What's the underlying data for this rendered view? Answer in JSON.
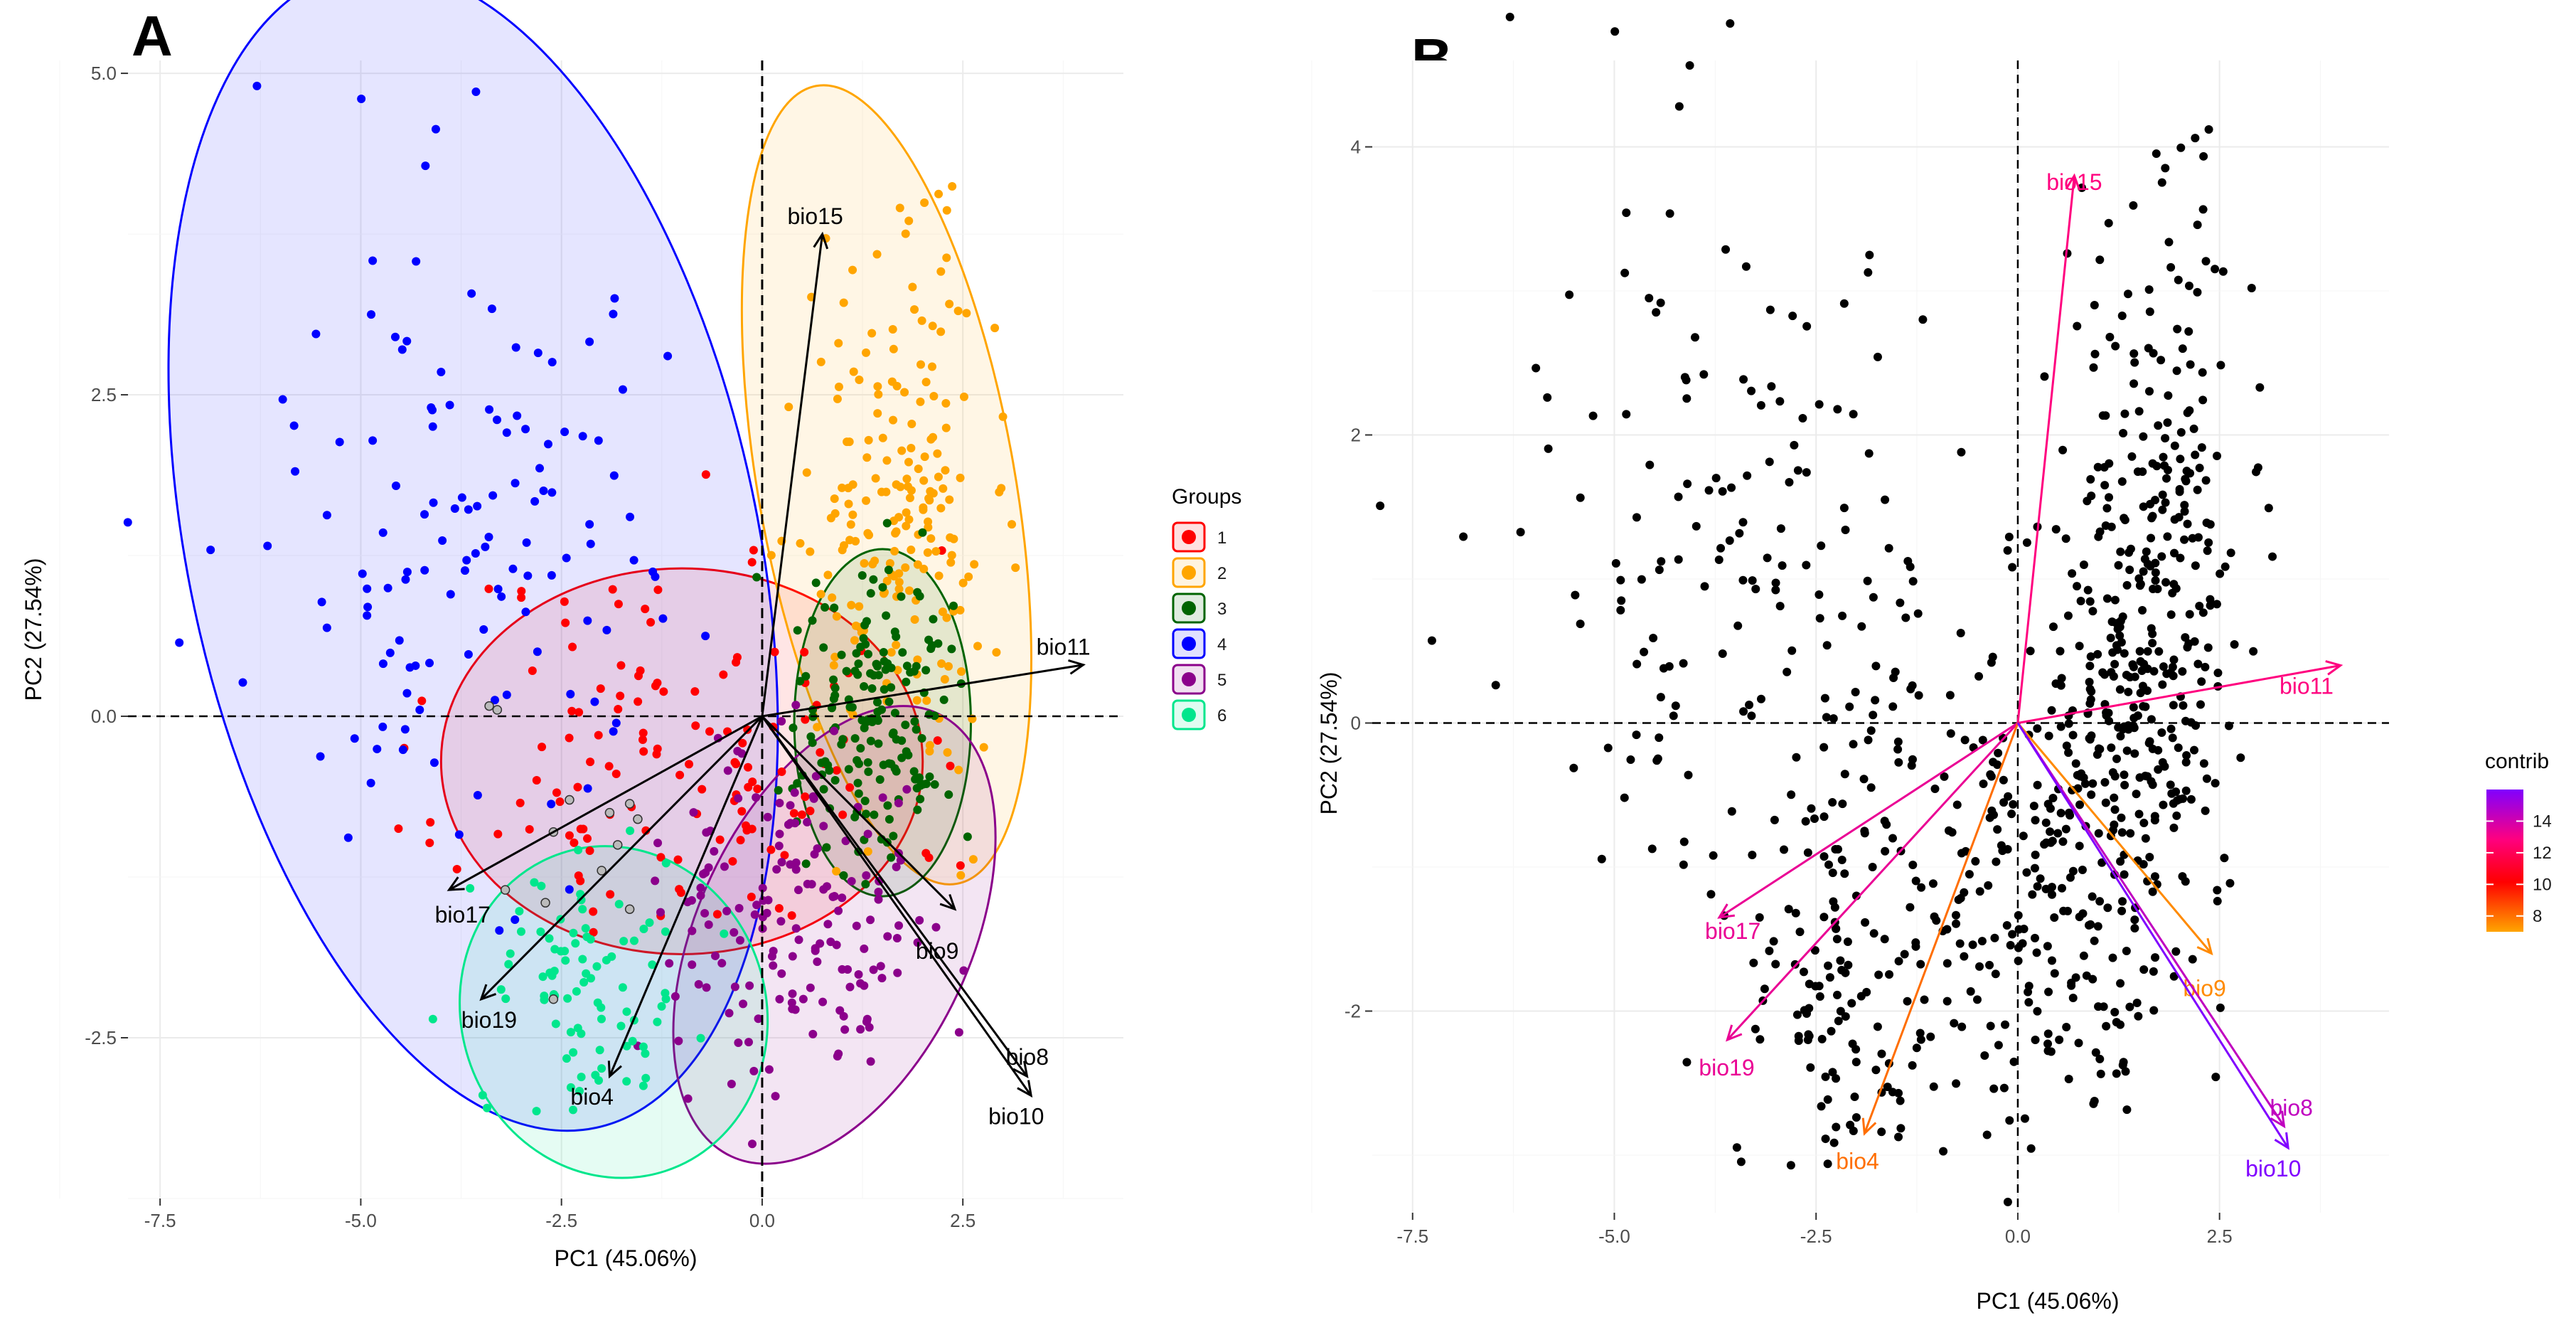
{
  "panel_a": {
    "letter": "A",
    "x_ticks": [
      "-7.5",
      "-5.0",
      "-2.5",
      "0.0",
      "2.5"
    ],
    "y_ticks": [
      "-2.5",
      "0.0",
      "2.5",
      "5.0"
    ],
    "legend": {
      "title": "Groups",
      "items": [
        {
          "label": "1",
          "color": "#ff0000"
        },
        {
          "label": "2",
          "color": "#ffa500"
        },
        {
          "label": "3",
          "color": "#006400"
        },
        {
          "label": "4",
          "color": "#0000ff"
        },
        {
          "label": "5",
          "color": "#8b008b"
        },
        {
          "label": "6",
          "color": "#00e68c"
        }
      ]
    }
  },
  "panel_b": {
    "letter": "B",
    "x_ticks": [
      "-7.5",
      "-5.0",
      "-2.5",
      "0.0",
      "2.5"
    ],
    "y_ticks": [
      "-2",
      "0",
      "2",
      "4"
    ],
    "legend": {
      "title": "contrib",
      "ticks": [
        "14",
        "12",
        "10",
        "8"
      ]
    }
  },
  "axis_labels": {
    "x": "PC1 (45.06%)",
    "y": "PC2 (27.54%)"
  },
  "chart_data": [
    {
      "type": "scatter",
      "panel": "A",
      "xlabel": "PC1 (45.06%)",
      "ylabel": "PC2 (27.54%)",
      "xlim": [
        -7.9,
        4.5
      ],
      "ylim": [
        -3.75,
        5.1
      ],
      "reference_lines": {
        "x": 0,
        "y": 0
      },
      "legend_title": "Groups",
      "groups": [
        {
          "name": "1",
          "color": "#ff0000",
          "ellipse": {
            "cx": -1.0,
            "cy": -0.35,
            "rx": 3.0,
            "ry": 1.5,
            "angle": 0
          },
          "points": {
            "count": 130,
            "center": [
              -1.0,
              -0.3
            ],
            "spread": [
              1.4,
              0.8
            ],
            "seed": 11
          }
        },
        {
          "name": "2",
          "color": "#ffa500",
          "ellipse": {
            "cx": 1.55,
            "cy": 1.8,
            "rx": 1.6,
            "ry": 3.15,
            "angle": -10
          },
          "points": {
            "count": 200,
            "center": [
              1.75,
              1.6
            ],
            "spread": [
              0.55,
              1.0
            ],
            "seed": 22
          }
        },
        {
          "name": "3",
          "color": "#006400",
          "ellipse": {
            "cx": 1.5,
            "cy": -0.05,
            "rx": 1.1,
            "ry": 1.35,
            "angle": 0
          },
          "points": {
            "count": 170,
            "center": [
              1.4,
              0.0
            ],
            "spread": [
              0.5,
              0.55
            ],
            "seed": 33
          }
        },
        {
          "name": "4",
          "color": "#0000ff",
          "ellipse": {
            "cx": -3.6,
            "cy": 1.3,
            "rx": 3.55,
            "ry": 4.6,
            "angle": -12
          },
          "points": {
            "count": 130,
            "center": [
              -3.7,
              1.5
            ],
            "spread": [
              1.4,
              1.4
            ],
            "seed": 44
          }
        },
        {
          "name": "5",
          "color": "#8b008b",
          "ellipse": {
            "cx": 0.9,
            "cy": -1.7,
            "rx": 1.7,
            "ry": 1.9,
            "angle": 25
          },
          "points": {
            "count": 160,
            "center": [
              0.3,
              -1.6
            ],
            "spread": [
              0.9,
              0.65
            ],
            "seed": 55
          }
        },
        {
          "name": "6",
          "color": "#00e68c",
          "ellipse": {
            "cx": -1.85,
            "cy": -2.3,
            "rx": 1.9,
            "ry": 1.3,
            "angle": -18
          },
          "points": {
            "count": 90,
            "center": [
              -2.2,
              -2.2
            ],
            "spread": [
              0.6,
              0.5
            ],
            "seed": 66
          }
        }
      ],
      "grey_points": {
        "color": "#bbbbbb",
        "points": [
          [
            -3.3,
            0.05
          ],
          [
            -3.4,
            0.08
          ],
          [
            -2.6,
            -0.9
          ],
          [
            -2.4,
            -0.65
          ],
          [
            -1.65,
            -0.68
          ],
          [
            -1.9,
            -0.75
          ],
          [
            -1.55,
            -0.8
          ],
          [
            -2.0,
            -1.2
          ],
          [
            -1.8,
            -1.0
          ],
          [
            -3.2,
            -1.35
          ],
          [
            -2.7,
            -1.45
          ],
          [
            -1.65,
            -1.5
          ],
          [
            -2.6,
            -2.2
          ]
        ]
      },
      "arrows": [
        {
          "label": "bio15",
          "end": [
            0.75,
            3.75
          ]
        },
        {
          "label": "bio11",
          "end": [
            4.0,
            0.4
          ]
        },
        {
          "label": "bio17",
          "end": [
            -3.9,
            -1.35
          ]
        },
        {
          "label": "bio19",
          "end": [
            -3.5,
            -2.2
          ]
        },
        {
          "label": "bio4",
          "end": [
            -1.9,
            -2.8
          ]
        },
        {
          "label": "bio9",
          "end": [
            2.4,
            -1.5
          ]
        },
        {
          "label": "bio8",
          "end": [
            3.3,
            -2.8
          ]
        },
        {
          "label": "bio10",
          "end": [
            3.35,
            -2.95
          ]
        }
      ]
    },
    {
      "type": "scatter",
      "panel": "B",
      "xlabel": "PC1 (45.06%)",
      "ylabel": "PC2 (27.54%)",
      "xlim": [
        -8.0,
        4.6
      ],
      "ylim": [
        -3.4,
        4.6
      ],
      "reference_lines": {
        "x": 0,
        "y": 0
      },
      "point_color": "#000000",
      "legend_title": "contrib",
      "colorscale": {
        "min": 7,
        "max": 16,
        "stops": [
          "#ffa500",
          "#ff0000",
          "#ff007f",
          "#8000ff"
        ]
      },
      "arrows": [
        {
          "label": "bio15",
          "end": [
            0.7,
            3.8
          ],
          "contrib": 13
        },
        {
          "label": "bio11",
          "end": [
            4.0,
            0.4
          ],
          "contrib": 13
        },
        {
          "label": "bio17",
          "end": [
            -3.7,
            -1.35
          ],
          "contrib": 13.5
        },
        {
          "label": "bio19",
          "end": [
            -3.6,
            -2.2
          ],
          "contrib": 13.5
        },
        {
          "label": "bio4",
          "end": [
            -1.9,
            -2.85
          ],
          "contrib": 8
        },
        {
          "label": "bio9",
          "end": [
            2.4,
            -1.6
          ],
          "contrib": 7.5
        },
        {
          "label": "bio8",
          "end": [
            3.3,
            -2.8
          ],
          "contrib": 14.5
        },
        {
          "label": "bio10",
          "end": [
            3.35,
            -2.95
          ],
          "contrib": 16
        }
      ]
    }
  ]
}
